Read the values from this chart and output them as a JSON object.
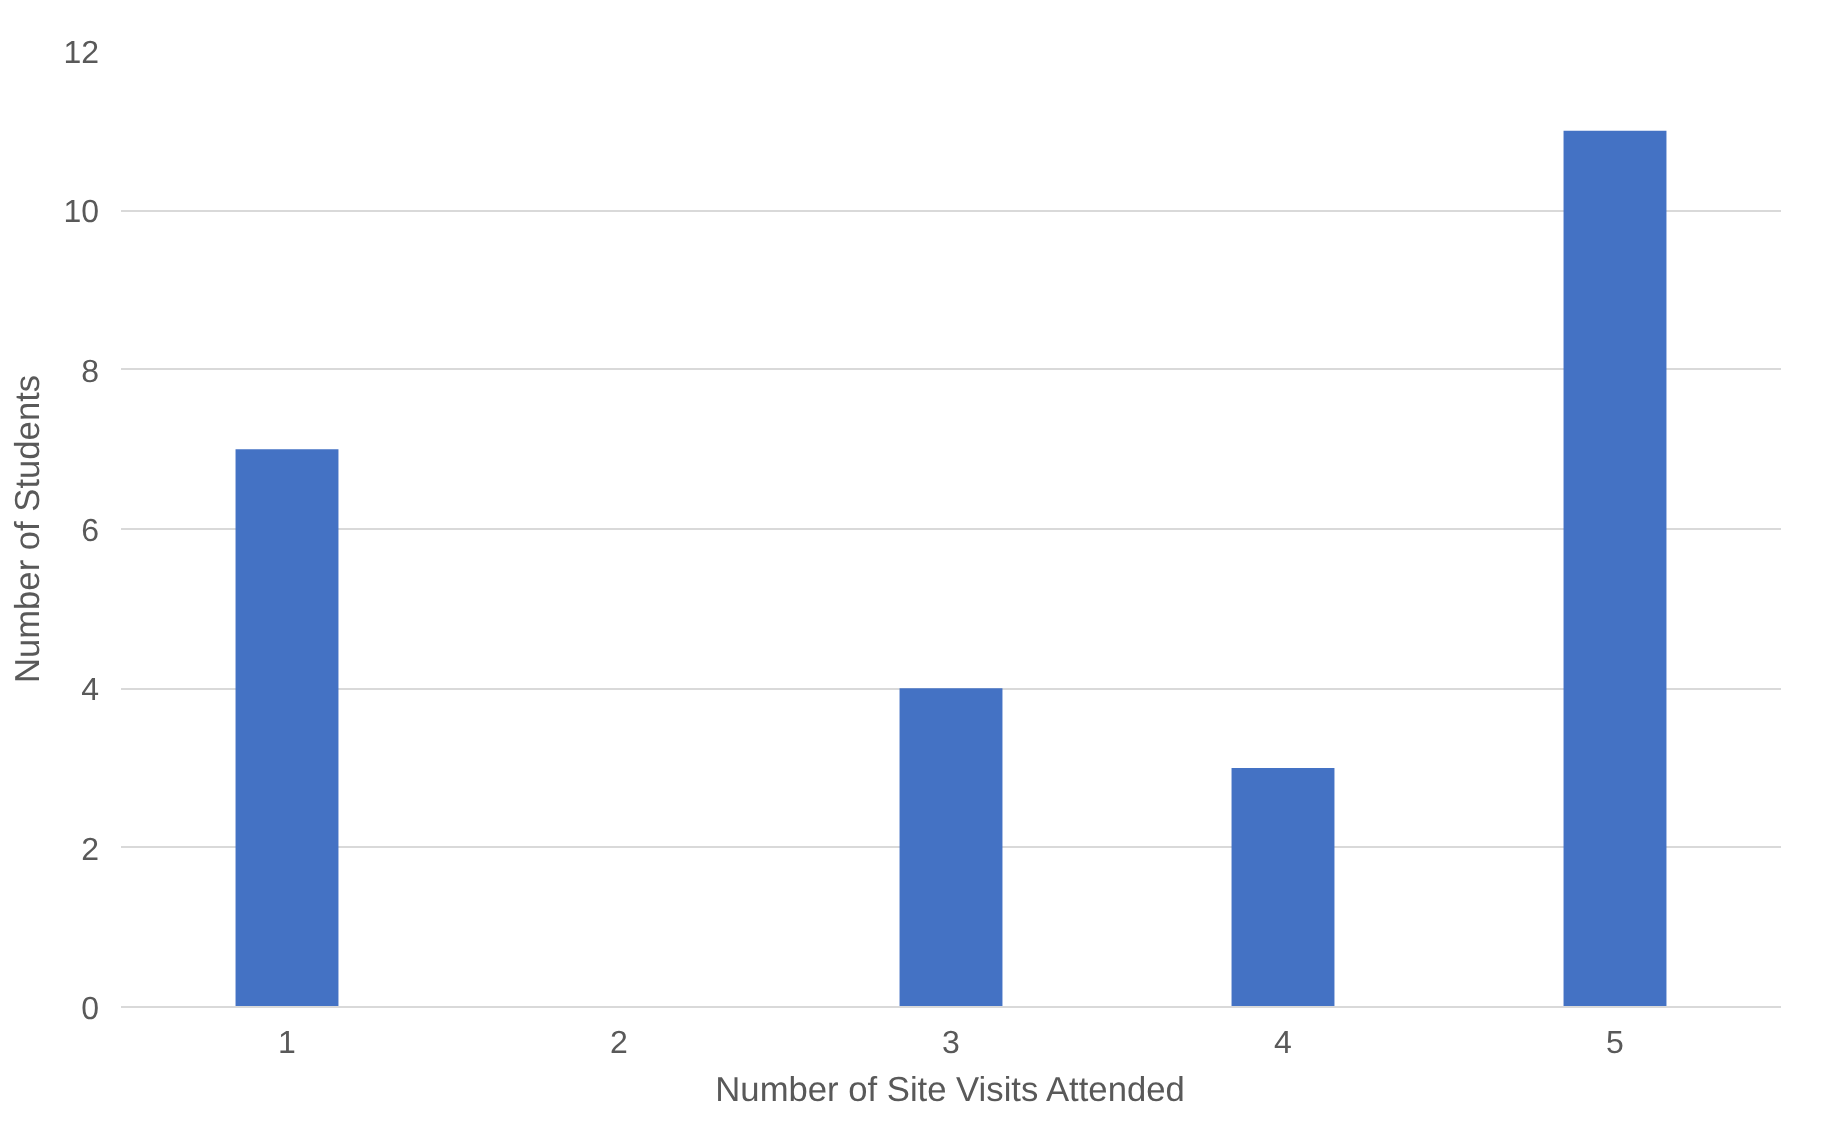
{
  "chart_data": {
    "type": "bar",
    "xlabel": "Number of Site Visits Attended",
    "ylabel": "Number of Students",
    "categories": [
      "1",
      "2",
      "3",
      "4",
      "5"
    ],
    "values": [
      7,
      0,
      4,
      3,
      11
    ],
    "color": "#4472c4",
    "ylim": [
      0,
      12
    ],
    "yticks": [
      0,
      2,
      4,
      6,
      8,
      10,
      12
    ],
    "grid": "y"
  }
}
